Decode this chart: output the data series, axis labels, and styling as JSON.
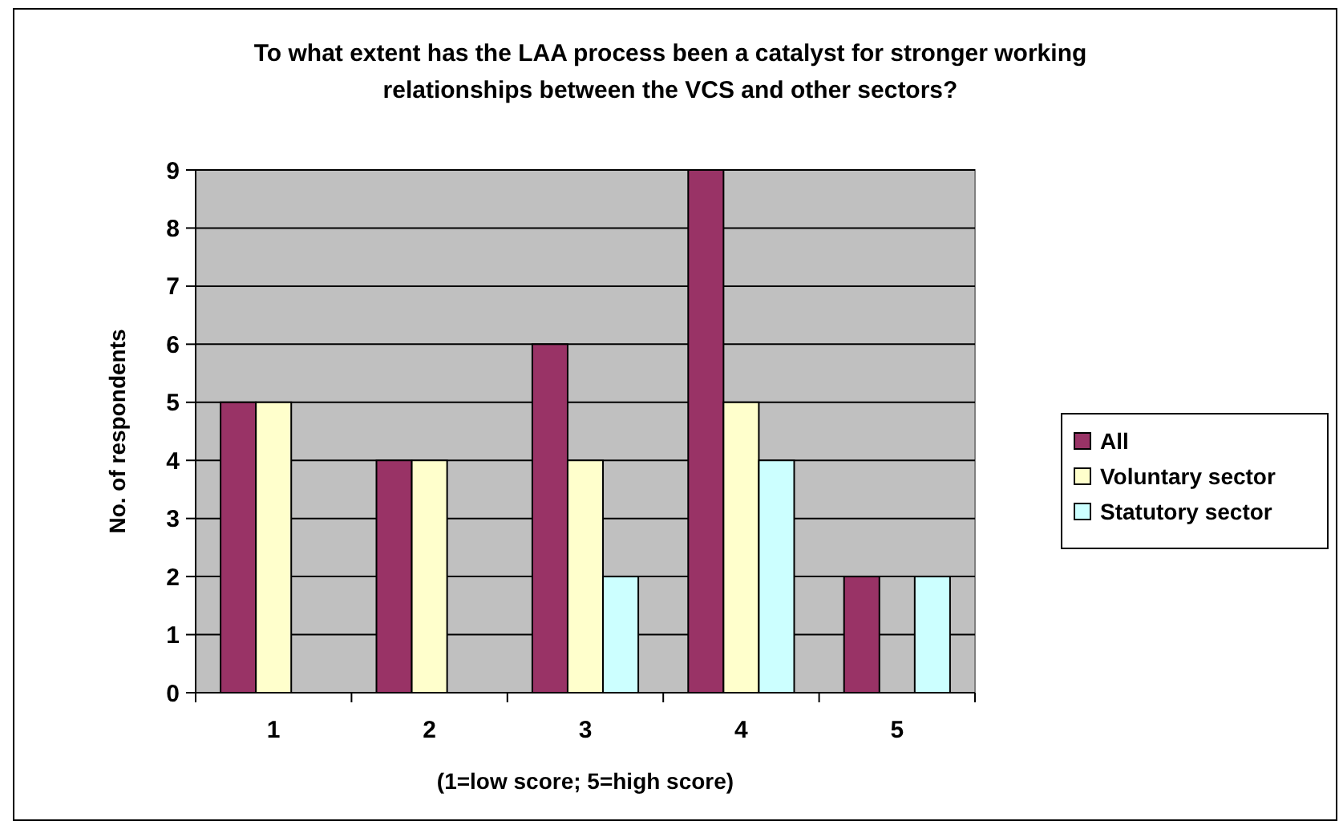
{
  "chart_data": {
    "type": "bar",
    "title": "To what extent has the LAA process been a catalyst for stronger working relationships between the VCS and other sectors?",
    "xlabel": "(1=low score; 5=high score)",
    "ylabel": "No. of respondents",
    "categories": [
      "1",
      "2",
      "3",
      "4",
      "5"
    ],
    "series": [
      {
        "name": "All",
        "color": "#993366",
        "values": [
          5,
          4,
          6,
          9,
          2
        ]
      },
      {
        "name": "Voluntary sector",
        "color": "#ffffcc",
        "values": [
          5,
          4,
          4,
          5,
          0
        ]
      },
      {
        "name": "Statutory sector",
        "color": "#ccffff",
        "values": [
          0,
          0,
          2,
          4,
          2
        ]
      }
    ],
    "ylim": [
      0,
      9
    ],
    "yticks": [
      0,
      1,
      2,
      3,
      4,
      5,
      6,
      7,
      8,
      9
    ],
    "grid": "y",
    "legend": "right"
  }
}
